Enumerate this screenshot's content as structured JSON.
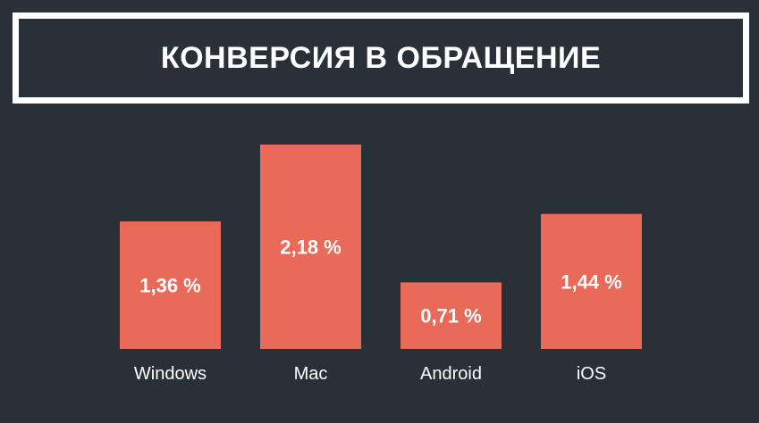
{
  "title": "КОНВЕРСИЯ В ОБРАЩЕНИЕ",
  "colors": {
    "background": "#293038",
    "bar": "#ea6a59",
    "text": "#ffffff",
    "frame": "#ffffff"
  },
  "chart_data": {
    "type": "bar",
    "title": "КОНВЕРСИЯ В ОБРАЩЕНИЕ",
    "categories": [
      "Windows",
      "Mac",
      "Android",
      "iOS"
    ],
    "values": [
      1.36,
      2.18,
      0.71,
      1.44
    ],
    "value_labels": [
      "1,36 %",
      "2,18 %",
      "0,71 %",
      "1,44 %"
    ],
    "xlabel": "",
    "ylabel": "",
    "ylim": [
      0,
      2.18
    ],
    "grid": false,
    "legend": "none"
  }
}
